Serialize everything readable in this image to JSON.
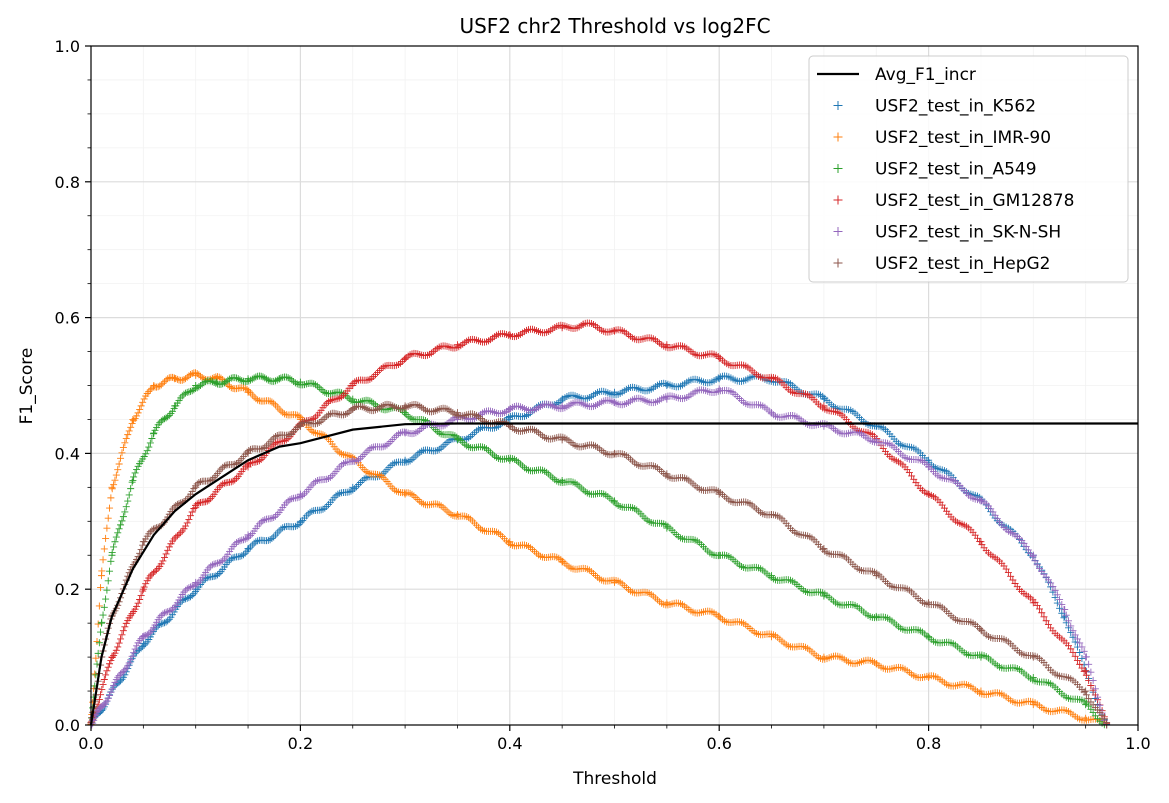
{
  "chart_data": {
    "type": "scatter",
    "title": "USF2 chr2 Threshold vs log2FC",
    "xlabel": "Threshold",
    "ylabel": "F1_Score",
    "xlim": [
      0.0,
      1.0
    ],
    "ylim": [
      0.0,
      1.0
    ],
    "xticks": [
      "0.0",
      "0.2",
      "0.4",
      "0.6",
      "0.8",
      "1.0"
    ],
    "yticks": [
      "0.0",
      "0.2",
      "0.4",
      "0.6",
      "0.8",
      "1.0"
    ],
    "grid": true,
    "legend_position": "top-right",
    "series": [
      {
        "name": "Avg_F1_incr",
        "kind": "line",
        "color": "#000000",
        "x": [
          0,
          0.01,
          0.02,
          0.04,
          0.06,
          0.08,
          0.1,
          0.12,
          0.15,
          0.18,
          0.2,
          0.25,
          0.3,
          0.35,
          0.4,
          0.5,
          0.6,
          0.7,
          0.8,
          0.9,
          1.0
        ],
        "y": [
          0,
          0.1,
          0.16,
          0.23,
          0.28,
          0.315,
          0.34,
          0.36,
          0.39,
          0.41,
          0.415,
          0.435,
          0.443,
          0.444,
          0.444,
          0.444,
          0.444,
          0.444,
          0.444,
          0.444,
          0.444
        ]
      },
      {
        "name": "USF2_test_in_K562",
        "kind": "marker",
        "color": "#1f77b4",
        "x": [
          0,
          0.05,
          0.1,
          0.15,
          0.2,
          0.25,
          0.3,
          0.35,
          0.4,
          0.45,
          0.5,
          0.55,
          0.6,
          0.65,
          0.7,
          0.75,
          0.8,
          0.85,
          0.9,
          0.93,
          0.95,
          0.97
        ],
        "y": [
          0,
          0.12,
          0.2,
          0.26,
          0.3,
          0.35,
          0.39,
          0.42,
          0.45,
          0.48,
          0.49,
          0.5,
          0.51,
          0.51,
          0.48,
          0.44,
          0.39,
          0.33,
          0.25,
          0.16,
          0.08,
          0.0
        ]
      },
      {
        "name": "USF2_test_in_IMR-90",
        "kind": "marker",
        "color": "#ff7f0e",
        "x": [
          0,
          0.01,
          0.02,
          0.04,
          0.06,
          0.08,
          0.1,
          0.12,
          0.15,
          0.2,
          0.25,
          0.3,
          0.35,
          0.4,
          0.45,
          0.5,
          0.55,
          0.6,
          0.65,
          0.7,
          0.75,
          0.8,
          0.85,
          0.9,
          0.95,
          0.97
        ],
        "y": [
          0,
          0.22,
          0.35,
          0.45,
          0.5,
          0.51,
          0.515,
          0.51,
          0.49,
          0.45,
          0.39,
          0.34,
          0.31,
          0.27,
          0.24,
          0.21,
          0.18,
          0.16,
          0.13,
          0.1,
          0.09,
          0.07,
          0.05,
          0.03,
          0.01,
          0.0
        ]
      },
      {
        "name": "USF2_test_in_A549",
        "kind": "marker",
        "color": "#2ca02c",
        "x": [
          0,
          0.01,
          0.02,
          0.04,
          0.06,
          0.08,
          0.1,
          0.12,
          0.15,
          0.18,
          0.2,
          0.25,
          0.3,
          0.35,
          0.4,
          0.45,
          0.5,
          0.55,
          0.6,
          0.65,
          0.7,
          0.75,
          0.8,
          0.85,
          0.9,
          0.95,
          0.97
        ],
        "y": [
          0,
          0.15,
          0.25,
          0.36,
          0.43,
          0.47,
          0.5,
          0.505,
          0.51,
          0.51,
          0.505,
          0.48,
          0.46,
          0.42,
          0.39,
          0.36,
          0.33,
          0.29,
          0.25,
          0.22,
          0.19,
          0.16,
          0.13,
          0.1,
          0.07,
          0.03,
          0.0
        ]
      },
      {
        "name": "USF2_test_in_GM12878",
        "kind": "marker",
        "color": "#d62728",
        "x": [
          0,
          0.02,
          0.05,
          0.1,
          0.15,
          0.2,
          0.25,
          0.3,
          0.35,
          0.4,
          0.45,
          0.47,
          0.5,
          0.55,
          0.6,
          0.65,
          0.7,
          0.75,
          0.8,
          0.85,
          0.9,
          0.95,
          0.97
        ],
        "y": [
          0,
          0.1,
          0.2,
          0.32,
          0.38,
          0.44,
          0.5,
          0.54,
          0.56,
          0.575,
          0.585,
          0.59,
          0.58,
          0.56,
          0.54,
          0.51,
          0.47,
          0.42,
          0.34,
          0.27,
          0.18,
          0.08,
          0.0
        ]
      },
      {
        "name": "USF2_test_in_SK-N-SH",
        "kind": "marker",
        "color": "#9467bd",
        "x": [
          0,
          0.05,
          0.1,
          0.15,
          0.2,
          0.25,
          0.3,
          0.35,
          0.4,
          0.45,
          0.5,
          0.55,
          0.6,
          0.65,
          0.7,
          0.75,
          0.8,
          0.85,
          0.9,
          0.93,
          0.95,
          0.97
        ],
        "y": [
          0,
          0.13,
          0.21,
          0.28,
          0.34,
          0.39,
          0.43,
          0.45,
          0.465,
          0.47,
          0.475,
          0.48,
          0.495,
          0.46,
          0.44,
          0.42,
          0.38,
          0.33,
          0.25,
          0.17,
          0.1,
          0.0
        ]
      },
      {
        "name": "USF2_test_in_HepG2",
        "kind": "marker",
        "color": "#8c564b",
        "x": [
          0,
          0.01,
          0.02,
          0.05,
          0.1,
          0.15,
          0.2,
          0.25,
          0.3,
          0.35,
          0.4,
          0.45,
          0.5,
          0.55,
          0.6,
          0.65,
          0.7,
          0.75,
          0.8,
          0.85,
          0.9,
          0.95,
          0.97
        ],
        "y": [
          0,
          0.1,
          0.16,
          0.27,
          0.35,
          0.4,
          0.44,
          0.465,
          0.47,
          0.46,
          0.44,
          0.42,
          0.4,
          0.37,
          0.34,
          0.31,
          0.26,
          0.22,
          0.18,
          0.14,
          0.1,
          0.05,
          0.0
        ]
      }
    ]
  }
}
